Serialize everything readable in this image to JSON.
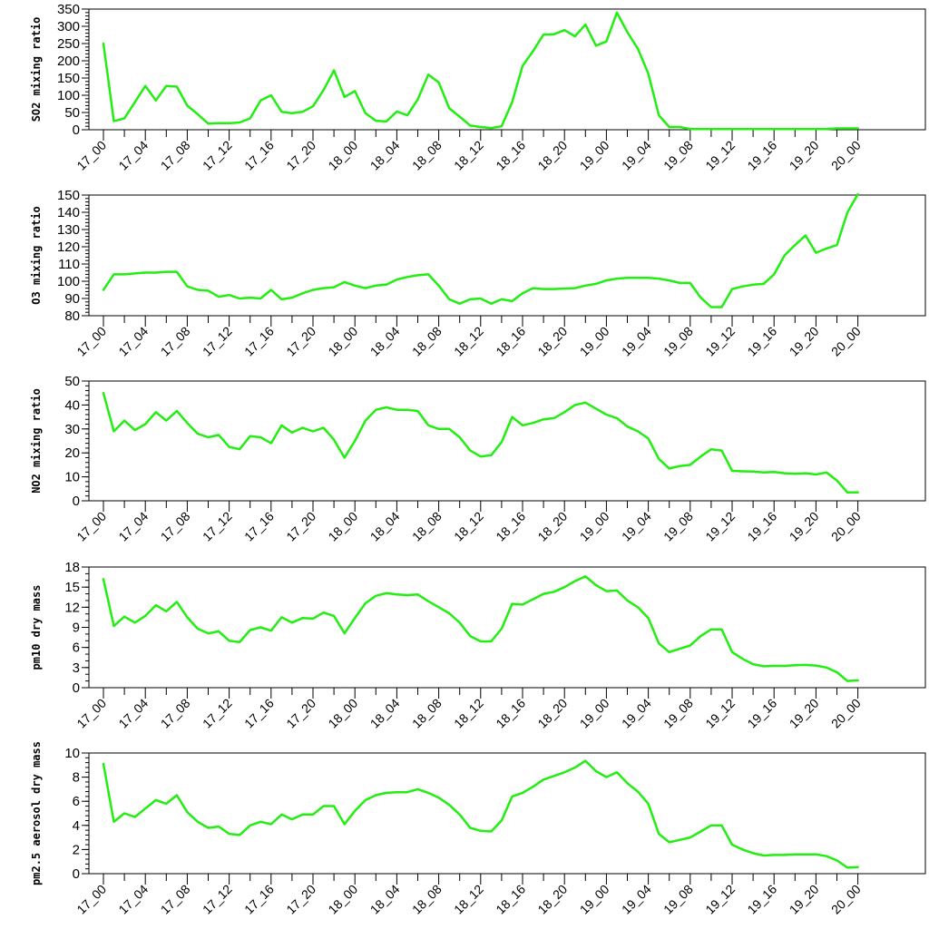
{
  "chart_data": [
    {
      "type": "line",
      "ylabel": "SO2 mixing ratio",
      "ylim": [
        0,
        350
      ],
      "yticks": [
        0,
        50,
        100,
        150,
        200,
        250,
        300,
        350
      ],
      "ytick_labels": [
        "0",
        "50",
        "100",
        "150",
        "200",
        "250",
        "300",
        "350"
      ],
      "y_minor_step": 10,
      "x_tick_labels": [
        "17_00",
        "17_04",
        "17_08",
        "17_12",
        "17_16",
        "17_20",
        "18_00",
        "18_04",
        "18_08",
        "18_12",
        "18_16",
        "18_20",
        "19_00",
        "19_04",
        "19_08",
        "19_12",
        "19_16",
        "19_20",
        "20_00"
      ],
      "x_range_hours": [
        0,
        72
      ],
      "grid": false,
      "series": [
        {
          "color": "#22ee11",
          "values": [
            250,
            25,
            33,
            80,
            127,
            85,
            127,
            125,
            70,
            45,
            18,
            19,
            19,
            21,
            33,
            85,
            100,
            52,
            48,
            52,
            68,
            115,
            172,
            95,
            112,
            48,
            26,
            24,
            53,
            42,
            88,
            160,
            137,
            62,
            38,
            12,
            8,
            5,
            10,
            80,
            185,
            228,
            276,
            277,
            289,
            271,
            305,
            244,
            256,
            340,
            283,
            235,
            163,
            42,
            8,
            8,
            2,
            2,
            2,
            2,
            2,
            2,
            2,
            2,
            2,
            2,
            2,
            2,
            2,
            2,
            4,
            4,
            4
          ]
        }
      ]
    },
    {
      "type": "line",
      "ylabel": "O3 mixing ratio",
      "ylim": [
        80,
        150
      ],
      "yticks": [
        80,
        90,
        100,
        110,
        120,
        130,
        140,
        150
      ],
      "ytick_labels": [
        "80",
        "90",
        "100",
        "110",
        "120",
        "130",
        "140",
        "150"
      ],
      "y_minor_step": 2,
      "x_tick_labels": [
        "17_00",
        "17_04",
        "17_08",
        "17_12",
        "17_16",
        "17_20",
        "18_00",
        "18_04",
        "18_08",
        "18_12",
        "18_16",
        "18_20",
        "19_00",
        "19_04",
        "19_08",
        "19_12",
        "19_16",
        "19_20",
        "20_00"
      ],
      "x_range_hours": [
        0,
        72
      ],
      "grid": false,
      "series": [
        {
          "color": "#22ee11",
          "values": [
            95,
            104,
            104,
            104.5,
            105,
            105,
            105.5,
            105.5,
            97,
            95,
            94.5,
            91,
            92,
            90,
            90.5,
            90,
            95,
            89.5,
            90.5,
            93,
            95,
            96,
            96.5,
            99.5,
            97.5,
            96,
            97.5,
            98,
            101,
            102.5,
            103.5,
            104,
            97.5,
            89.5,
            87,
            89.5,
            90,
            87,
            89.5,
            88.5,
            93,
            96,
            95.5,
            95.5,
            95.8,
            96,
            97.5,
            98.5,
            100.5,
            101.5,
            102,
            102,
            102,
            101.5,
            100.5,
            99,
            99,
            90.5,
            85,
            85,
            95.5,
            97,
            98,
            98.5,
            104,
            115,
            121,
            126.5,
            116.5,
            119,
            121,
            140,
            150.5
          ]
        }
      ]
    },
    {
      "type": "line",
      "ylabel": "NO2 mixing ratio",
      "ylim": [
        0,
        50
      ],
      "yticks": [
        0,
        10,
        20,
        30,
        40,
        50
      ],
      "ytick_labels": [
        "0",
        "10",
        "20",
        "30",
        "40",
        "50"
      ],
      "y_minor_step": 2,
      "x_tick_labels": [
        "17_00",
        "17_04",
        "17_08",
        "17_12",
        "17_16",
        "17_20",
        "18_00",
        "18_04",
        "18_08",
        "18_12",
        "18_16",
        "18_20",
        "19_00",
        "19_04",
        "19_08",
        "19_12",
        "19_16",
        "19_20",
        "20_00"
      ],
      "x_range_hours": [
        0,
        72
      ],
      "grid": false,
      "series": [
        {
          "color": "#22ee11",
          "values": [
            45,
            29,
            33.5,
            29.5,
            32,
            37,
            33.5,
            37.5,
            32.5,
            28,
            26.5,
            27.5,
            22.5,
            21.5,
            27,
            26.5,
            24,
            31.5,
            28.5,
            30.5,
            29,
            30.5,
            25.5,
            18,
            25,
            33.5,
            38,
            39,
            38,
            38,
            37.5,
            31.5,
            30,
            30,
            26.5,
            21,
            18.5,
            19,
            24.5,
            35,
            31.5,
            32.5,
            34,
            34.5,
            37,
            40,
            41,
            38.5,
            36,
            34.5,
            31,
            29,
            26,
            17.5,
            13.5,
            14.5,
            15,
            18.5,
            21.5,
            21,
            12.5,
            12.3,
            12.2,
            11.8,
            12,
            11.5,
            11.3,
            11.5,
            11,
            11.8,
            8.5,
            3.5,
            3.5
          ]
        }
      ]
    },
    {
      "type": "line",
      "ylabel": "pm10 dry mass",
      "ylim": [
        0,
        18
      ],
      "yticks": [
        0,
        3,
        6,
        9,
        12,
        15,
        18
      ],
      "ytick_labels": [
        "0",
        "3",
        "6",
        "9",
        "12",
        "15",
        "18"
      ],
      "y_minor_step": 1,
      "x_tick_labels": [
        "17_00",
        "17_04",
        "17_08",
        "17_12",
        "17_16",
        "17_20",
        "18_00",
        "18_04",
        "18_08",
        "18_12",
        "18_16",
        "18_20",
        "19_00",
        "19_04",
        "19_08",
        "19_12",
        "19_16",
        "19_20",
        "20_00"
      ],
      "x_range_hours": [
        0,
        72
      ],
      "grid": false,
      "series": [
        {
          "color": "#22ee11",
          "values": [
            16.2,
            9.2,
            10.6,
            9.7,
            10.7,
            12.3,
            11.4,
            12.8,
            10.5,
            8.8,
            8.1,
            8.4,
            7,
            6.8,
            8.6,
            9,
            8.5,
            10.5,
            9.7,
            10.4,
            10.3,
            11.2,
            10.7,
            8.1,
            10.4,
            12.6,
            13.7,
            14.1,
            13.9,
            13.8,
            13.9,
            12.9,
            12,
            11.1,
            9.7,
            7.7,
            6.9,
            6.9,
            8.8,
            12.5,
            12.4,
            13.2,
            14,
            14.3,
            15,
            15.9,
            16.6,
            15.3,
            14.4,
            14.5,
            13,
            12,
            10.4,
            6.6,
            5.3,
            5.8,
            6.3,
            7.7,
            8.7,
            8.7,
            5.3,
            4.3,
            3.5,
            3.2,
            3.25,
            3.25,
            3.35,
            3.4,
            3.3,
            3,
            2.3,
            1,
            1.1
          ]
        }
      ]
    },
    {
      "type": "line",
      "ylabel": "pm2.5 aerosol dry mass",
      "ylim": [
        0,
        10
      ],
      "yticks": [
        0,
        2,
        4,
        6,
        8,
        10
      ],
      "ytick_labels": [
        "0",
        "2",
        "4",
        "6",
        "8",
        "10"
      ],
      "y_minor_step": 0.4,
      "x_tick_labels": [
        "17_00",
        "17_04",
        "17_08",
        "17_12",
        "17_16",
        "17_20",
        "18_00",
        "18_04",
        "18_08",
        "18_12",
        "18_16",
        "18_20",
        "19_00",
        "19_04",
        "19_08",
        "19_12",
        "19_16",
        "19_20",
        "20_00"
      ],
      "x_range_hours": [
        0,
        72
      ],
      "grid": false,
      "series": [
        {
          "color": "#22ee11",
          "values": [
            9.1,
            4.3,
            5,
            4.7,
            5.4,
            6.1,
            5.8,
            6.5,
            5.1,
            4.3,
            3.8,
            3.9,
            3.3,
            3.2,
            4,
            4.3,
            4.1,
            4.9,
            4.5,
            4.9,
            4.9,
            5.6,
            5.6,
            4.1,
            5.2,
            6.1,
            6.5,
            6.7,
            6.75,
            6.75,
            7,
            6.7,
            6.3,
            5.7,
            4.9,
            3.8,
            3.55,
            3.5,
            4.4,
            6.4,
            6.7,
            7.2,
            7.8,
            8.1,
            8.4,
            8.8,
            9.35,
            8.5,
            8,
            8.4,
            7.5,
            6.8,
            5.8,
            3.3,
            2.6,
            2.8,
            3,
            3.5,
            4,
            4,
            2.4,
            2,
            1.7,
            1.5,
            1.55,
            1.55,
            1.6,
            1.6,
            1.6,
            1.45,
            1.1,
            0.5,
            0.55
          ]
        }
      ]
    }
  ]
}
